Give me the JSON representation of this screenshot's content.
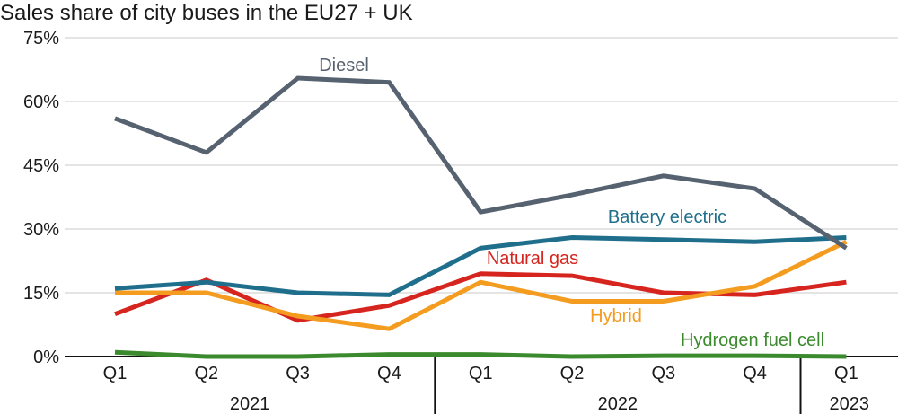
{
  "chart_data": {
    "type": "line",
    "title": "Sales share of city buses in the EU27 + UK",
    "categories": [
      "Q1",
      "Q2",
      "Q3",
      "Q4",
      "Q1",
      "Q2",
      "Q3",
      "Q4",
      "Q1"
    ],
    "years": [
      {
        "label": "2021",
        "quarters": 4
      },
      {
        "label": "2022",
        "quarters": 4
      },
      {
        "label": "2023",
        "quarters": 1
      }
    ],
    "ylim": [
      0,
      75
    ],
    "yticks": [
      "0%",
      "15%",
      "30%",
      "45%",
      "60%",
      "75%"
    ],
    "ytick_values": [
      0,
      15,
      30,
      45,
      60,
      75
    ],
    "grid": true,
    "series": [
      {
        "name": "Diesel",
        "color": "#566270",
        "values": [
          56,
          48,
          65.5,
          64.5,
          34,
          38,
          42.5,
          39.5,
          25.5
        ]
      },
      {
        "name": "Battery electric",
        "color": "#1f6e8c",
        "values": [
          16,
          17.5,
          15,
          14.5,
          25.5,
          28,
          27.5,
          27,
          28
        ]
      },
      {
        "name": "Natural gas",
        "color": "#d6251f",
        "values": [
          10,
          18,
          8.5,
          12,
          19.5,
          19,
          15,
          14.5,
          17.5
        ]
      },
      {
        "name": "Hybrid",
        "color": "#f39c1f",
        "values": [
          15,
          15,
          9.5,
          6.5,
          17.5,
          13,
          13,
          16.5,
          27
        ]
      },
      {
        "name": "Hydrogen fuel cell",
        "color": "#3c8a2e",
        "values": [
          1,
          0,
          0,
          0.5,
          0.5,
          0,
          0.2,
          0.2,
          0
        ]
      }
    ]
  }
}
